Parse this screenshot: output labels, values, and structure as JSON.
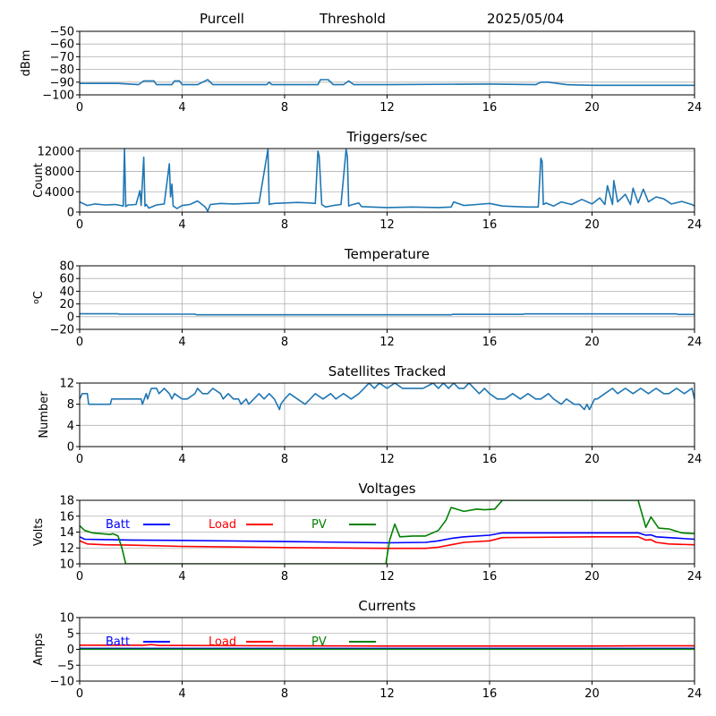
{
  "header": {
    "station": "Purcell",
    "mode": "Threshold",
    "date": "2025/05/04"
  },
  "chart_data": [
    {
      "type": "line",
      "title": "",
      "ylabel": "dBm",
      "xlim": [
        0,
        24
      ],
      "ylim": [
        -100,
        -50
      ],
      "xticks": [
        0,
        4,
        8,
        12,
        16,
        20,
        24
      ],
      "yticks": [
        -100,
        -90,
        -80,
        -70,
        -60,
        -50
      ],
      "grid": true,
      "series": [
        {
          "color": "#1f77b4",
          "x": [
            0,
            1.5,
            2.3,
            2.5,
            2.9,
            3.0,
            3.6,
            3.7,
            3.9,
            4.0,
            4.6,
            4.8,
            5.0,
            5.2,
            7.3,
            7.4,
            7.5,
            9.3,
            9.4,
            9.7,
            9.9,
            10.3,
            10.5,
            10.7,
            12,
            16,
            17.8,
            18.0,
            18.3,
            19.0,
            20,
            24
          ],
          "y": [
            -91,
            -91,
            -92,
            -89,
            -89,
            -92,
            -92,
            -89,
            -89,
            -92,
            -92,
            -90,
            -88,
            -92,
            -92,
            -90,
            -92,
            -92,
            -88,
            -88,
            -92,
            -92,
            -89,
            -92,
            -92,
            -91.5,
            -92,
            -90,
            -90,
            -92,
            -92.5,
            -92.5
          ]
        }
      ]
    },
    {
      "type": "line",
      "title": "Triggers/sec",
      "ylabel": "Count",
      "xlim": [
        0,
        24
      ],
      "ylim": [
        0,
        12500
      ],
      "xticks": [
        0,
        4,
        8,
        12,
        16,
        20,
        24
      ],
      "yticks": [
        0,
        4000,
        8000,
        12000
      ],
      "grid": true,
      "series": [
        {
          "color": "#1f77b4",
          "x": [
            0,
            0.3,
            0.6,
            1.0,
            1.4,
            1.7,
            1.75,
            1.8,
            1.85,
            1.9,
            2.2,
            2.35,
            2.4,
            2.5,
            2.55,
            2.6,
            2.7,
            3.0,
            3.3,
            3.5,
            3.55,
            3.6,
            3.65,
            3.8,
            4.0,
            4.3,
            4.6,
            4.9,
            5.0,
            5.1,
            5.5,
            6.0,
            6.5,
            7.0,
            7.35,
            7.4,
            7.45,
            7.6,
            8.0,
            8.5,
            9.0,
            9.2,
            9.3,
            9.35,
            9.45,
            9.6,
            9.9,
            10.2,
            10.4,
            10.45,
            10.5,
            10.6,
            10.9,
            11.0,
            11.4,
            12.0,
            13.0,
            14.0,
            14.5,
            14.6,
            15.0,
            15.5,
            16.0,
            16.5,
            17.0,
            17.5,
            17.9,
            18.0,
            18.05,
            18.1,
            18.2,
            18.5,
            18.8,
            19.2,
            19.6,
            20.0,
            20.3,
            20.5,
            20.6,
            20.8,
            20.85,
            21.0,
            21.3,
            21.5,
            21.6,
            21.8,
            22.0,
            22.2,
            22.5,
            22.8,
            23.1,
            23.5,
            23.9,
            24
          ],
          "y": [
            2000,
            1300,
            1600,
            1400,
            1500,
            1200,
            12400,
            1100,
            1300,
            1400,
            1500,
            4200,
            1300,
            10800,
            1200,
            1500,
            800,
            1400,
            1600,
            9500,
            3000,
            5500,
            1200,
            700,
            1300,
            1500,
            2200,
            1000,
            200,
            1500,
            1700,
            1600,
            1700,
            1800,
            12400,
            1500,
            1600,
            1700,
            1800,
            1900,
            1800,
            1700,
            12000,
            11000,
            1500,
            1000,
            1300,
            1500,
            12300,
            11000,
            1200,
            1400,
            1800,
            1100,
            1000,
            900,
            1000,
            900,
            1000,
            2000,
            1300,
            1500,
            1700,
            1200,
            1100,
            1000,
            1000,
            10600,
            10000,
            1500,
            1800,
            1200,
            2000,
            1500,
            2500,
            1600,
            2800,
            1500,
            5200,
            1500,
            6200,
            2000,
            3500,
            1500,
            4700,
            1800,
            4500,
            2000,
            3000,
            2600,
            1600,
            2100,
            1500,
            1200
          ]
        }
      ]
    },
    {
      "type": "line",
      "title": "Temperature",
      "ylabel": "oC",
      "xlim": [
        0,
        24
      ],
      "ylim": [
        -20,
        80
      ],
      "xticks": [
        0,
        4,
        8,
        12,
        16,
        20,
        24
      ],
      "yticks": [
        -20,
        0,
        20,
        40,
        60,
        80
      ],
      "grid": true,
      "series": [
        {
          "color": "#1f77b4",
          "x": [
            0,
            1.5,
            1.55,
            4.5,
            4.55,
            14.5,
            14.55,
            17.3,
            17.35,
            23.3,
            23.35,
            24
          ],
          "y": [
            4.5,
            4.5,
            4,
            4,
            3,
            3,
            3.7,
            3.7,
            4.3,
            4.3,
            3.5,
            3.5
          ]
        }
      ]
    },
    {
      "type": "line",
      "title": "Satellites Tracked",
      "ylabel": "Number",
      "xlim": [
        0,
        24
      ],
      "ylim": [
        0,
        12
      ],
      "xticks": [
        0,
        4,
        8,
        12,
        16,
        20,
        24
      ],
      "yticks": [
        0,
        4,
        8,
        12
      ],
      "grid": true,
      "series": [
        {
          "color": "#1f77b4",
          "x": [
            0,
            0.1,
            0.3,
            0.35,
            0.6,
            1.0,
            1.2,
            1.25,
            2.0,
            2.4,
            2.45,
            2.6,
            2.65,
            2.8,
            3.0,
            3.1,
            3.3,
            3.5,
            3.6,
            3.7,
            4.0,
            4.2,
            4.5,
            4.6,
            4.8,
            5.0,
            5.2,
            5.5,
            5.6,
            5.8,
            6.0,
            6.2,
            6.3,
            6.5,
            6.6,
            6.8,
            7.0,
            7.2,
            7.4,
            7.6,
            7.7,
            7.8,
            7.85,
            8.0,
            8.2,
            8.5,
            8.8,
            9.0,
            9.2,
            9.5,
            9.8,
            10.0,
            10.3,
            10.6,
            10.9,
            11.1,
            11.3,
            11.5,
            11.7,
            12.0,
            12.3,
            12.6,
            13.0,
            13.4,
            13.8,
            14.0,
            14.2,
            14.4,
            14.6,
            14.8,
            15.0,
            15.2,
            15.4,
            15.6,
            15.8,
            16.0,
            16.3,
            16.6,
            16.9,
            17.2,
            17.5,
            17.8,
            18.0,
            18.3,
            18.5,
            18.8,
            19.0,
            19.3,
            19.5,
            19.7,
            19.8,
            19.9,
            20.0,
            20.1,
            20.2,
            20.5,
            20.8,
            21.0,
            21.3,
            21.6,
            21.9,
            22.2,
            22.5,
            22.8,
            23.0,
            23.3,
            23.6,
            23.9,
            24
          ],
          "y": [
            9,
            10,
            10,
            8,
            8,
            8,
            8,
            9,
            9,
            9,
            8,
            10,
            9,
            11,
            11,
            10,
            11,
            10,
            9,
            10,
            9,
            9,
            10,
            11,
            10,
            10,
            11,
            10,
            9,
            10,
            9,
            9,
            8,
            9,
            8,
            9,
            10,
            9,
            10,
            9,
            8,
            7,
            8,
            9,
            10,
            9,
            8,
            9,
            10,
            9,
            10,
            9,
            10,
            9,
            10,
            11,
            12,
            11,
            12,
            11,
            12,
            11,
            11,
            11,
            12,
            11,
            12,
            11,
            12,
            11,
            11,
            12,
            11,
            10,
            11,
            10,
            9,
            9,
            10,
            9,
            10,
            9,
            9,
            10,
            9,
            8,
            9,
            8,
            8,
            7,
            8,
            7,
            8,
            9,
            9,
            10,
            11,
            10,
            11,
            10,
            11,
            10,
            11,
            10,
            10,
            11,
            10,
            11,
            9
          ]
        }
      ]
    },
    {
      "type": "line",
      "title": "Voltages",
      "ylabel": "Volts",
      "xlim": [
        0,
        24
      ],
      "ylim": [
        10,
        18
      ],
      "xticks": [
        0,
        4,
        8,
        12,
        16,
        20,
        24
      ],
      "yticks": [
        10,
        12,
        14,
        16,
        18
      ],
      "grid": true,
      "legend": "inline-top-left",
      "series": [
        {
          "name": "Batt",
          "color": "#0000ff",
          "x": [
            0,
            0.2,
            1,
            2,
            4,
            8,
            12,
            13.5,
            14,
            14.5,
            15,
            16,
            16.5,
            18,
            20,
            21.8,
            22.1,
            22.3,
            22.5,
            23,
            24
          ],
          "y": [
            13.4,
            13.1,
            13.05,
            13.0,
            12.95,
            12.8,
            12.65,
            12.7,
            12.9,
            13.2,
            13.4,
            13.6,
            13.9,
            13.9,
            13.9,
            13.9,
            13.6,
            13.65,
            13.4,
            13.3,
            13.1
          ]
        },
        {
          "name": "Load",
          "color": "#ff0000",
          "x": [
            0,
            0.3,
            1,
            2,
            4,
            8,
            12,
            13.5,
            14,
            14.5,
            15,
            16,
            16.5,
            18,
            20,
            21.8,
            22.1,
            22.3,
            22.5,
            23,
            24
          ],
          "y": [
            12.9,
            12.5,
            12.4,
            12.35,
            12.2,
            12.05,
            11.95,
            11.95,
            12.1,
            12.4,
            12.7,
            12.9,
            13.3,
            13.35,
            13.4,
            13.4,
            13.0,
            13.05,
            12.7,
            12.5,
            12.4
          ]
        },
        {
          "name": "PV",
          "color": "#008000",
          "x": [
            0,
            0.2,
            0.5,
            1.2,
            1.3,
            1.5,
            1.65,
            1.8,
            11.95,
            12.1,
            12.3,
            12.5,
            13.0,
            13.5,
            14.0,
            14.3,
            14.5,
            15.0,
            15.5,
            15.8,
            16.2,
            16.5,
            21.8,
            22.1,
            22.3,
            22.6,
            23.0,
            23.5,
            24
          ],
          "y": [
            14.8,
            14.2,
            13.9,
            13.7,
            13.8,
            13.5,
            12.0,
            10.0,
            10.0,
            13.0,
            15.0,
            13.4,
            13.5,
            13.5,
            14.2,
            15.5,
            17.1,
            16.6,
            16.9,
            16.8,
            16.9,
            18.0,
            18.0,
            14.6,
            15.9,
            14.5,
            14.4,
            13.9,
            13.8
          ]
        }
      ]
    },
    {
      "type": "line",
      "title": "Currents",
      "ylabel": "Amps",
      "xlim": [
        0,
        24
      ],
      "ylim": [
        -10,
        10
      ],
      "xticks": [
        0,
        4,
        8,
        12,
        16,
        20,
        24
      ],
      "yticks": [
        -10,
        -5,
        0,
        5,
        10
      ],
      "grid": true,
      "legend": "inline-top-left",
      "series": [
        {
          "name": "Batt",
          "color": "#0000ff",
          "x": [
            0,
            24
          ],
          "y": [
            0.3,
            0.3
          ]
        },
        {
          "name": "Load",
          "color": "#ff0000",
          "x": [
            0,
            2.5,
            2.8,
            3.1,
            4,
            8,
            12,
            16,
            20,
            22,
            24
          ],
          "y": [
            1.3,
            1.3,
            1.5,
            1.2,
            1.2,
            1.1,
            1.05,
            1.05,
            1.05,
            1.1,
            1.1
          ]
        },
        {
          "name": "PV",
          "color": "#008000",
          "x": [
            0,
            24
          ],
          "y": [
            0.05,
            0.05
          ]
        }
      ]
    }
  ]
}
